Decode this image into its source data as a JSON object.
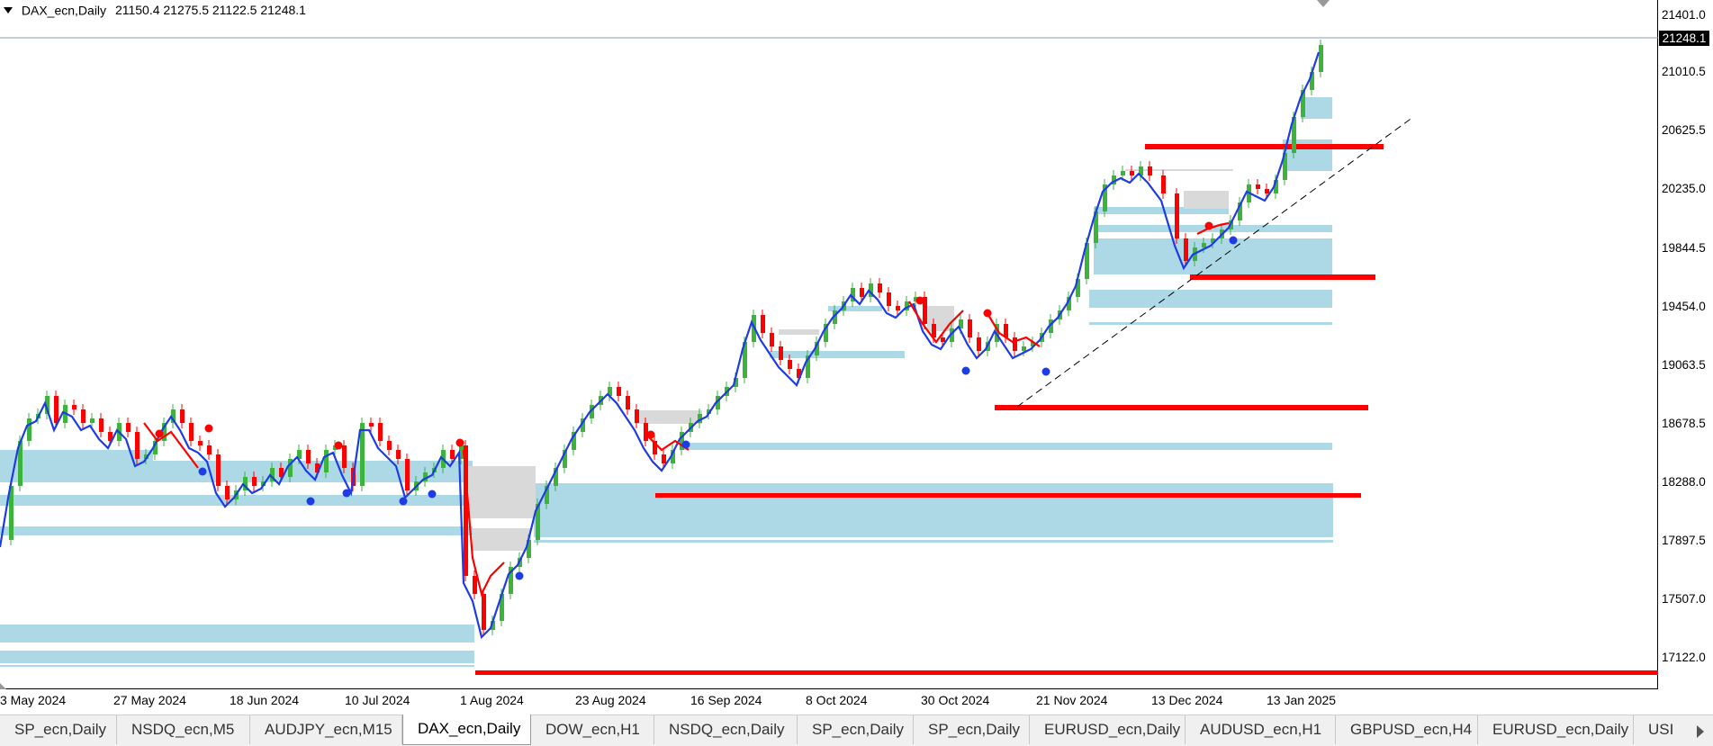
{
  "window": {
    "symbol_title": "DAX_ecn,Daily",
    "ohlc": "21150.4 21275.5 21122.5 21248.1"
  },
  "price_axis": {
    "labels": [
      "21401.0",
      "21010.5",
      "20625.5",
      "20235.0",
      "19844.5",
      "19454.0",
      "19063.5",
      "18678.5",
      "18288.0",
      "17897.5",
      "17507.0",
      "17122.0"
    ],
    "current_price": "21248.1"
  },
  "time_axis": {
    "labels": [
      "3 May 2024",
      "27 May 2024",
      "18 Jun 2024",
      "10 Jul 2024",
      "1 Aug 2024",
      "23 Aug 2024",
      "16 Sep 2024",
      "8 Oct 2024",
      "30 Oct 2024",
      "21 Nov 2024",
      "13 Dec 2024",
      "13 Jan 2025"
    ]
  },
  "colors": {
    "bull_candle": "#3cb43c",
    "bear_candle": "#ff0000",
    "blue_line": "#1e3ce6",
    "red_line": "#ff0000",
    "demand_zone": "#add8e6",
    "supply_zone": "#d9d9d9",
    "support_level": "#ff0000",
    "trendline": "#000000",
    "current_price_bg": "#000000"
  },
  "tabs": [
    {
      "label": "SP_ecn,Daily",
      "active": false
    },
    {
      "label": "NSDQ_ecn,M5",
      "active": false
    },
    {
      "label": "AUDJPY_ecn,M15",
      "active": false
    },
    {
      "label": "DAX_ecn,Daily",
      "active": true
    },
    {
      "label": "DOW_ecn,H1",
      "active": false
    },
    {
      "label": "NSDQ_ecn,Daily",
      "active": false
    },
    {
      "label": "SP_ecn,Daily",
      "active": false
    },
    {
      "label": "SP_ecn,Daily",
      "active": false
    },
    {
      "label": "EURUSD_ecn,Daily",
      "active": false
    },
    {
      "label": "AUDUSD_ecn,H1",
      "active": false
    },
    {
      "label": "GBPUSD_ecn,H4",
      "active": false
    },
    {
      "label": "EURUSD_ecn,Daily",
      "active": false
    },
    {
      "label": "USI",
      "active": false
    }
  ]
}
